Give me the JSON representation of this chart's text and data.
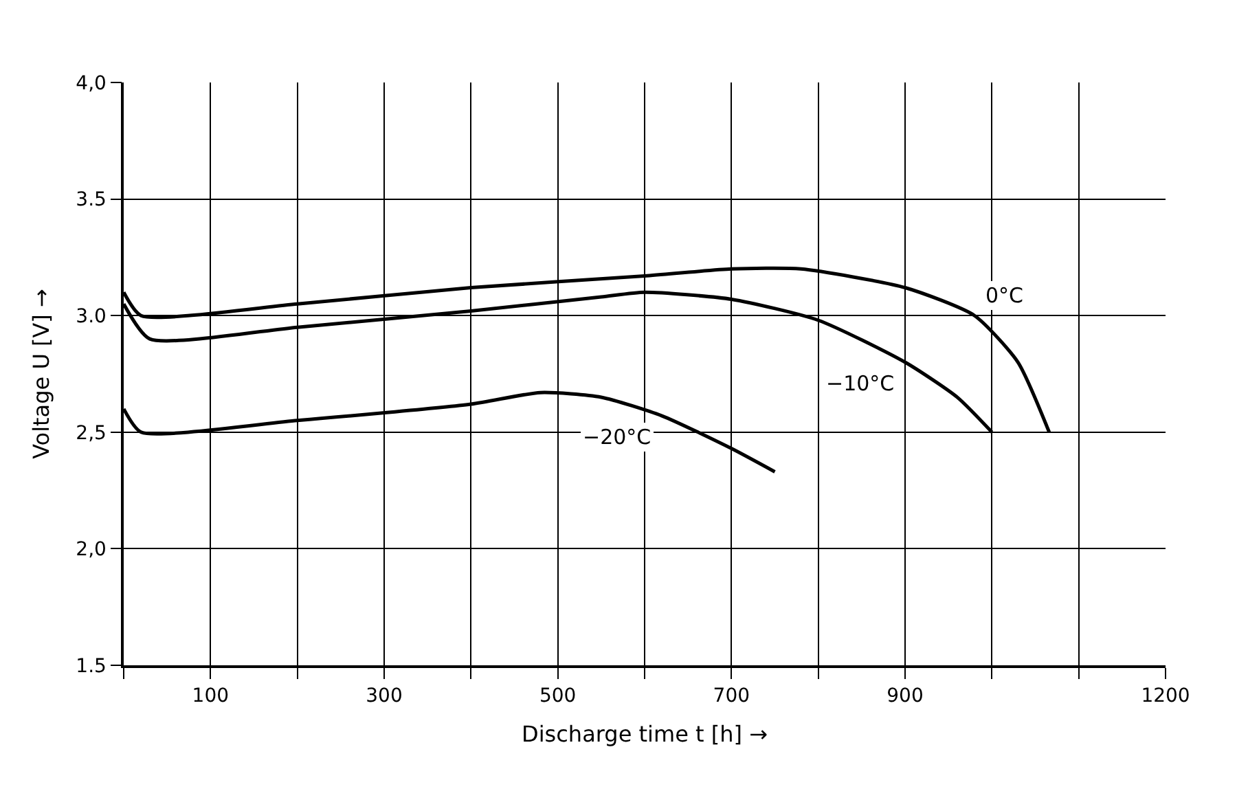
{
  "chart_data": {
    "type": "line",
    "xlabel": "Discharge time t [h] →",
    "ylabel": "Voltage U [V] →",
    "xlim": [
      0,
      1200
    ],
    "ylim": [
      1.5,
      4.0
    ],
    "xticks": [
      {
        "value": 0,
        "label": null
      },
      100,
      {
        "value": 200,
        "label": null
      },
      300,
      {
        "value": 400,
        "label": null
      },
      500,
      {
        "value": 600,
        "label": null
      },
      700,
      {
        "value": 800,
        "label": null
      },
      900,
      {
        "value": 1000,
        "label": null
      },
      {
        "value": 1100,
        "label": null
      },
      1200
    ],
    "yticks": [
      {
        "value": 1.5,
        "label": "1.5"
      },
      {
        "value": 2.0,
        "label": "2,0"
      },
      {
        "value": 2.5,
        "label": "2,5"
      },
      {
        "value": 3.0,
        "label": "3.0"
      },
      {
        "value": 3.5,
        "label": "3.5"
      },
      {
        "value": 4.0,
        "label": "4,0"
      }
    ],
    "grid": true,
    "legend": false,
    "marker": "none",
    "line_style": "solid",
    "series": [
      {
        "name": "0°C",
        "color": "#000000",
        "x": [
          0,
          20,
          200,
          400,
          600,
          700,
          780,
          900,
          980,
          1030,
          1066
        ],
        "values": [
          3.1,
          3.0,
          3.05,
          3.12,
          3.17,
          3.2,
          3.2,
          3.12,
          3.0,
          2.8,
          2.5
        ]
      },
      {
        "name": "−10°C",
        "color": "#000000",
        "x": [
          0,
          30,
          200,
          400,
          550,
          600,
          700,
          800,
          900,
          960,
          1000
        ],
        "values": [
          3.05,
          2.9,
          2.95,
          3.02,
          3.08,
          3.1,
          3.07,
          2.98,
          2.8,
          2.65,
          2.5
        ]
      },
      {
        "name": "−20°C",
        "color": "#000000",
        "x": [
          0,
          20,
          200,
          400,
          480,
          550,
          620,
          700,
          750
        ],
        "values": [
          2.6,
          2.5,
          2.55,
          2.62,
          2.67,
          2.65,
          2.57,
          2.43,
          2.33
        ]
      }
    ]
  }
}
